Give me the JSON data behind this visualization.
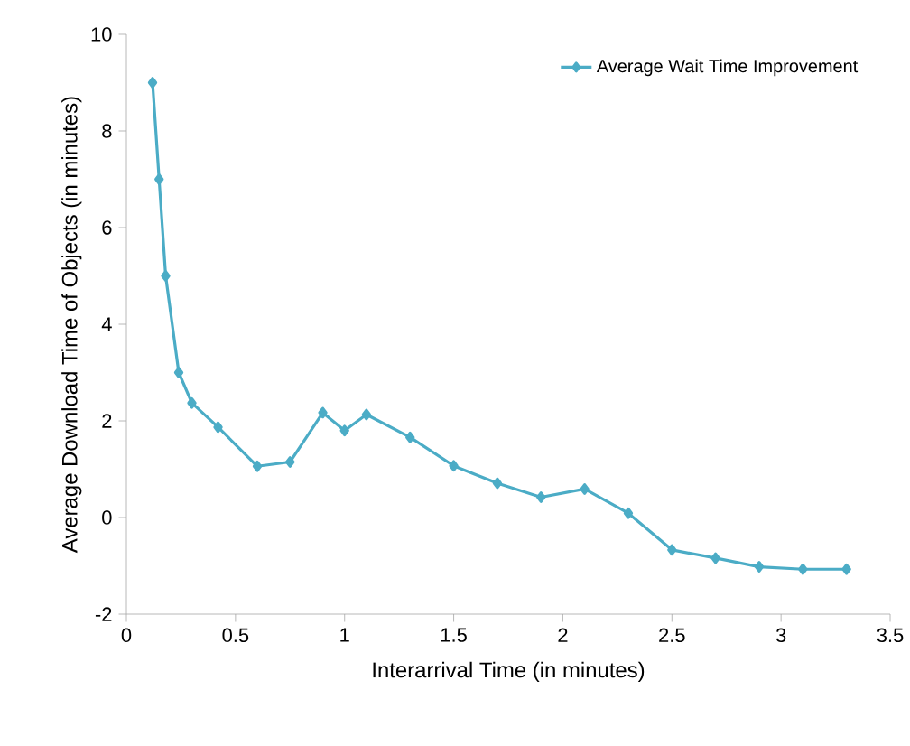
{
  "chart_data": {
    "type": "line",
    "xlabel": "Interarrival Time (in minutes)",
    "ylabel": "Average  Download Time of  Objects (in minutes)",
    "x": [
      0.12,
      0.15,
      0.18,
      0.24,
      0.3,
      0.42,
      0.6,
      0.75,
      0.9,
      1.0,
      1.1,
      1.3,
      1.5,
      1.7,
      1.9,
      2.1,
      2.3,
      2.5,
      2.7,
      2.9,
      3.1,
      3.3
    ],
    "series": [
      {
        "name": "Average Wait Time Improvement",
        "color": "#4bacc6",
        "values": [
          9.0,
          7.0,
          5.0,
          3.0,
          2.37,
          1.87,
          1.06,
          1.15,
          2.17,
          1.8,
          2.13,
          1.66,
          1.07,
          0.71,
          0.42,
          0.59,
          0.09,
          -0.67,
          -0.84,
          -1.02,
          -1.07,
          -1.07
        ]
      }
    ],
    "xlim": [
      0,
      3.5
    ],
    "xticks": [
      0,
      0.5,
      1,
      1.5,
      2,
      2.5,
      3,
      3.5
    ],
    "ylim": [
      -2,
      10
    ],
    "yticks": [
      -2,
      0,
      2,
      4,
      6,
      8,
      10
    ],
    "grid": false,
    "legend": "top right",
    "marker": "diamond",
    "line_style": "solid"
  }
}
